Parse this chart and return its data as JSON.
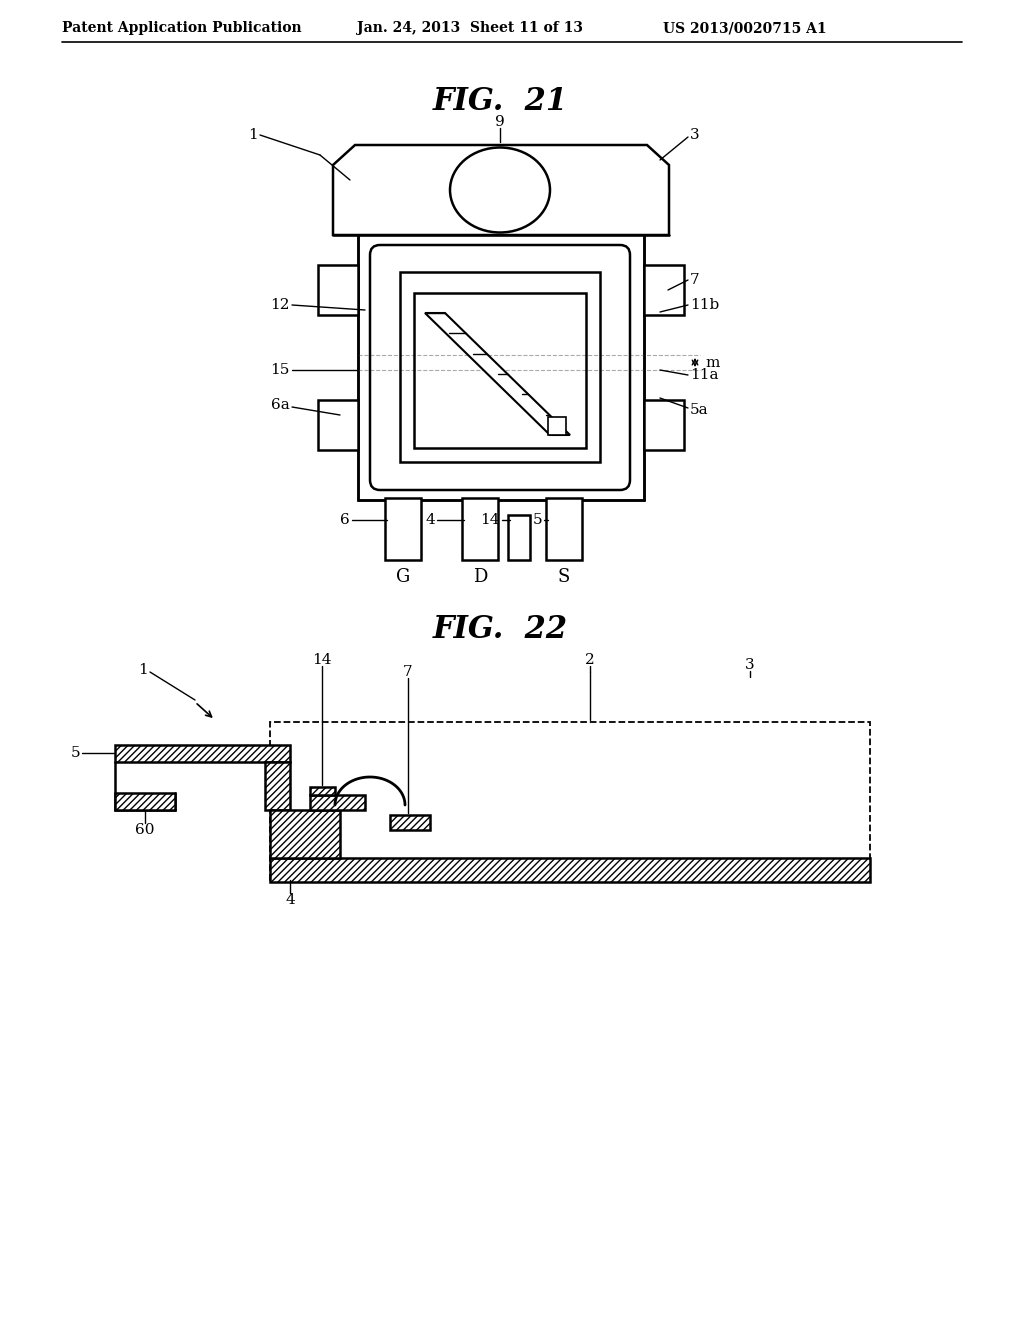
{
  "bg_color": "#ffffff",
  "header_text": "Patent Application Publication",
  "header_date": "Jan. 24, 2013  Sheet 11 of 13",
  "header_patent": "US 2013/0020715 A1",
  "fig21_title": "FIG.  21",
  "fig22_title": "FIG.  22",
  "line_color": "#000000"
}
